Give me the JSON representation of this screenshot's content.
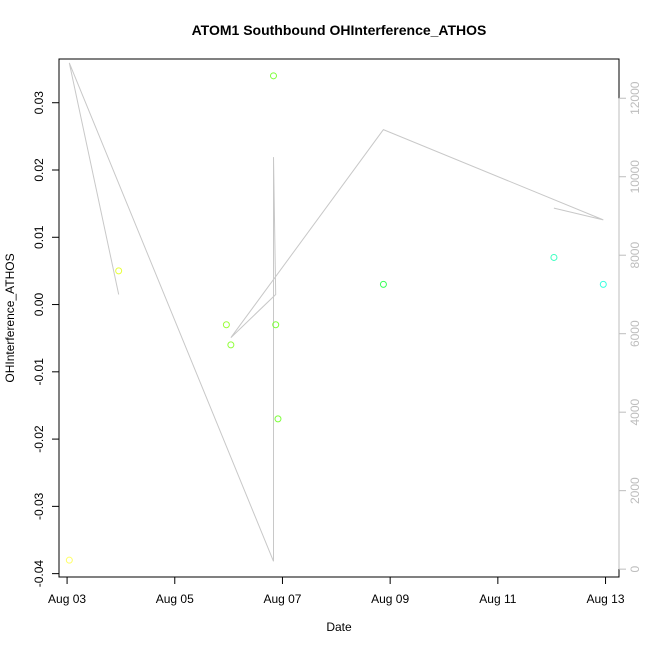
{
  "chart_data": {
    "type": "scatter",
    "title": "ATOM1 Southbound OHInterference_ATHOS",
    "xlabel": "Date",
    "ylabel": "OHInterference_ATHOS",
    "xlim": [
      "2013-08-02.85",
      "2013-08-13.25"
    ],
    "ylim": [
      -0.0405,
      0.0365
    ],
    "y2lim": [
      -200,
      13000
    ],
    "x_ticks": [
      {
        "date": "2013-08-03",
        "label": "Aug 03"
      },
      {
        "date": "2013-08-05",
        "label": "Aug 05"
      },
      {
        "date": "2013-08-07",
        "label": "Aug 07"
      },
      {
        "date": "2013-08-09",
        "label": "Aug 09"
      },
      {
        "date": "2013-08-11",
        "label": "Aug 11"
      },
      {
        "date": "2013-08-13",
        "label": "Aug 13"
      }
    ],
    "y_ticks": [
      -0.04,
      -0.03,
      -0.02,
      -0.01,
      0.0,
      0.01,
      0.02,
      0.03
    ],
    "y_tick_labels": [
      "-0.04",
      "-0.03",
      "-0.02",
      "-0.01",
      "0.00",
      "0.01",
      "0.02",
      "0.03"
    ],
    "y2_ticks": [
      0,
      2000,
      4000,
      6000,
      8000,
      10000,
      12000
    ],
    "y2_tick_labels": [
      "0",
      "2000",
      "4000",
      "6000",
      "8000",
      "10000",
      "12000"
    ],
    "points": [
      {
        "x": "2013-08-03 01:00",
        "y": -0.038,
        "color": "#ffff66"
      },
      {
        "x": "2013-08-03 23:00",
        "y": 0.005,
        "color": "#e8ff3a"
      },
      {
        "x": "2013-08-05 23:00",
        "y": -0.003,
        "color": "#9aff3a"
      },
      {
        "x": "2013-08-06 01:00",
        "y": -0.006,
        "color": "#90ff3a"
      },
      {
        "x": "2013-08-06 20:00",
        "y": 0.034,
        "color": "#7dff3a"
      },
      {
        "x": "2013-08-06 21:00",
        "y": -0.003,
        "color": "#7dff3a"
      },
      {
        "x": "2013-08-06 22:00",
        "y": -0.017,
        "color": "#7dff3a"
      },
      {
        "x": "2013-08-08 21:00",
        "y": 0.003,
        "color": "#3aff5a"
      },
      {
        "x": "2013-08-12 01:00",
        "y": 0.007,
        "color": "#3affc0"
      },
      {
        "x": "2013-08-12 23:00",
        "y": 0.003,
        "color": "#3affe0"
      }
    ],
    "line_series": {
      "color": "#c8c8c8",
      "axis": "right",
      "points": [
        {
          "x": "2013-08-03 01:00",
          "y": 12900
        },
        {
          "x": "2013-08-03 23:00",
          "y": 7000
        },
        {
          "x": "2013-08-03 01:00",
          "y": 12900
        },
        {
          "x": "2013-08-06 20:00",
          "y": 200
        },
        {
          "x": "2013-08-06 20:00",
          "y": 10500
        },
        {
          "x": "2013-08-06 21:00",
          "y": 7000
        },
        {
          "x": "2013-08-06 01:00",
          "y": 5900
        },
        {
          "x": "2013-08-08 21:00",
          "y": 11200
        },
        {
          "x": "2013-08-12 23:00",
          "y": 8900
        },
        {
          "x": "2013-08-12 01:00",
          "y": 9200
        }
      ]
    },
    "grid": false,
    "legend": "none"
  }
}
